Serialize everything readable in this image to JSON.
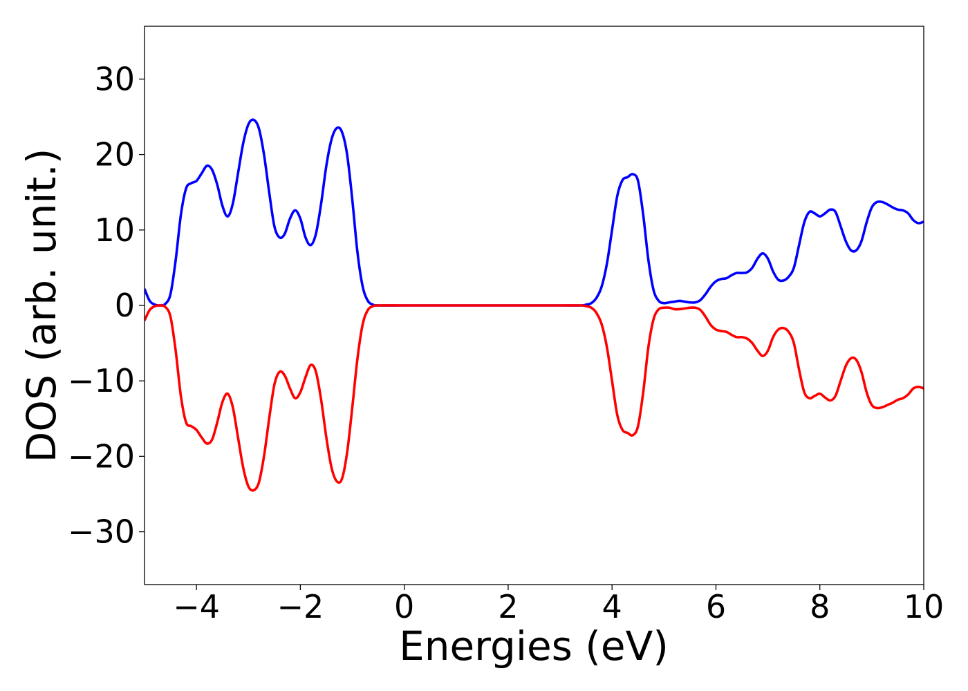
{
  "chart_data": {
    "type": "line",
    "title": "",
    "xlabel": "Energies (eV)",
    "ylabel": "DOS (arb. unit.)",
    "xlim": [
      -5,
      10
    ],
    "ylim": [
      -37,
      37
    ],
    "grid": false,
    "legend": "none",
    "xticks": [
      -4,
      -2,
      0,
      2,
      4,
      6,
      8,
      10
    ],
    "yticks": [
      30,
      20,
      10,
      0,
      -10,
      -20,
      -30
    ],
    "x_tick_labels": [
      "−4",
      "−2",
      "0",
      "2",
      "4",
      "6",
      "8",
      "10"
    ],
    "y_tick_labels": [
      "30",
      "20",
      "10",
      "0",
      "−10",
      "−20",
      "−30"
    ],
    "series": [
      {
        "color": "#0000ff",
        "points": [
          [
            -5.0,
            2.2
          ],
          [
            -4.9,
            0.6
          ],
          [
            -4.8,
            0.1
          ],
          [
            -4.7,
            0.0
          ],
          [
            -4.6,
            0.2
          ],
          [
            -4.5,
            1.5
          ],
          [
            -4.4,
            6.0
          ],
          [
            -4.3,
            12.0
          ],
          [
            -4.2,
            15.5
          ],
          [
            -4.1,
            16.2
          ],
          [
            -4.0,
            16.5
          ],
          [
            -3.9,
            17.5
          ],
          [
            -3.8,
            18.5
          ],
          [
            -3.7,
            18.0
          ],
          [
            -3.6,
            16.0
          ],
          [
            -3.5,
            13.2
          ],
          [
            -3.4,
            11.8
          ],
          [
            -3.3,
            13.5
          ],
          [
            -3.2,
            17.5
          ],
          [
            -3.1,
            21.5
          ],
          [
            -3.0,
            24.0
          ],
          [
            -2.9,
            24.6
          ],
          [
            -2.8,
            23.5
          ],
          [
            -2.7,
            20.0
          ],
          [
            -2.6,
            15.0
          ],
          [
            -2.5,
            10.5
          ],
          [
            -2.4,
            9.0
          ],
          [
            -2.3,
            9.5
          ],
          [
            -2.2,
            11.5
          ],
          [
            -2.1,
            12.6
          ],
          [
            -2.0,
            11.5
          ],
          [
            -1.9,
            9.0
          ],
          [
            -1.8,
            8.0
          ],
          [
            -1.7,
            9.5
          ],
          [
            -1.6,
            13.5
          ],
          [
            -1.5,
            18.5
          ],
          [
            -1.4,
            22.0
          ],
          [
            -1.3,
            23.5
          ],
          [
            -1.2,
            23.0
          ],
          [
            -1.1,
            20.0
          ],
          [
            -1.0,
            14.0
          ],
          [
            -0.9,
            7.0
          ],
          [
            -0.8,
            2.5
          ],
          [
            -0.7,
            0.6
          ],
          [
            -0.6,
            0.1
          ],
          [
            -0.5,
            0.0
          ],
          [
            0.0,
            0.0
          ],
          [
            1.0,
            0.0
          ],
          [
            2.0,
            0.0
          ],
          [
            3.0,
            0.0
          ],
          [
            3.4,
            0.0
          ],
          [
            3.5,
            0.1
          ],
          [
            3.6,
            0.3
          ],
          [
            3.7,
            1.0
          ],
          [
            3.8,
            2.5
          ],
          [
            3.9,
            5.5
          ],
          [
            4.0,
            10.0
          ],
          [
            4.1,
            14.5
          ],
          [
            4.2,
            16.6
          ],
          [
            4.3,
            17.0
          ],
          [
            4.4,
            17.4
          ],
          [
            4.5,
            16.5
          ],
          [
            4.6,
            12.0
          ],
          [
            4.7,
            6.0
          ],
          [
            4.8,
            2.0
          ],
          [
            4.9,
            0.6
          ],
          [
            5.0,
            0.3
          ],
          [
            5.1,
            0.4
          ],
          [
            5.2,
            0.5
          ],
          [
            5.3,
            0.6
          ],
          [
            5.4,
            0.5
          ],
          [
            5.5,
            0.4
          ],
          [
            5.6,
            0.4
          ],
          [
            5.7,
            0.7
          ],
          [
            5.8,
            1.5
          ],
          [
            5.9,
            2.5
          ],
          [
            6.0,
            3.2
          ],
          [
            6.1,
            3.5
          ],
          [
            6.2,
            3.6
          ],
          [
            6.3,
            4.0
          ],
          [
            6.4,
            4.3
          ],
          [
            6.5,
            4.3
          ],
          [
            6.6,
            4.4
          ],
          [
            6.7,
            5.0
          ],
          [
            6.8,
            6.2
          ],
          [
            6.9,
            6.9
          ],
          [
            7.0,
            6.2
          ],
          [
            7.1,
            4.5
          ],
          [
            7.2,
            3.4
          ],
          [
            7.3,
            3.3
          ],
          [
            7.4,
            3.8
          ],
          [
            7.5,
            5.0
          ],
          [
            7.6,
            8.0
          ],
          [
            7.7,
            11.0
          ],
          [
            7.8,
            12.4
          ],
          [
            7.9,
            12.2
          ],
          [
            8.0,
            11.8
          ],
          [
            8.1,
            12.2
          ],
          [
            8.2,
            12.7
          ],
          [
            8.3,
            12.4
          ],
          [
            8.4,
            10.5
          ],
          [
            8.5,
            8.5
          ],
          [
            8.6,
            7.3
          ],
          [
            8.7,
            7.3
          ],
          [
            8.8,
            8.5
          ],
          [
            8.9,
            11.0
          ],
          [
            9.0,
            13.0
          ],
          [
            9.1,
            13.7
          ],
          [
            9.2,
            13.7
          ],
          [
            9.3,
            13.4
          ],
          [
            9.4,
            13.0
          ],
          [
            9.5,
            12.7
          ],
          [
            9.6,
            12.6
          ],
          [
            9.7,
            12.2
          ],
          [
            9.8,
            11.3
          ],
          [
            9.9,
            10.9
          ],
          [
            10.0,
            11.1
          ]
        ]
      },
      {
        "color": "#ff0000",
        "points": [
          [
            -5.0,
            -2.0
          ],
          [
            -4.9,
            -0.6
          ],
          [
            -4.8,
            -0.1
          ],
          [
            -4.7,
            0.0
          ],
          [
            -4.6,
            -0.2
          ],
          [
            -4.5,
            -1.5
          ],
          [
            -4.4,
            -6.0
          ],
          [
            -4.3,
            -12.0
          ],
          [
            -4.2,
            -15.5
          ],
          [
            -4.1,
            -16.0
          ],
          [
            -4.0,
            -16.5
          ],
          [
            -3.9,
            -17.5
          ],
          [
            -3.8,
            -18.3
          ],
          [
            -3.7,
            -17.8
          ],
          [
            -3.6,
            -15.5
          ],
          [
            -3.5,
            -12.8
          ],
          [
            -3.4,
            -11.7
          ],
          [
            -3.3,
            -13.5
          ],
          [
            -3.2,
            -17.5
          ],
          [
            -3.1,
            -21.5
          ],
          [
            -3.0,
            -24.0
          ],
          [
            -2.9,
            -24.5
          ],
          [
            -2.8,
            -23.5
          ],
          [
            -2.7,
            -20.0
          ],
          [
            -2.6,
            -15.0
          ],
          [
            -2.5,
            -10.5
          ],
          [
            -2.4,
            -8.8
          ],
          [
            -2.3,
            -9.3
          ],
          [
            -2.2,
            -11.0
          ],
          [
            -2.1,
            -12.3
          ],
          [
            -2.0,
            -11.5
          ],
          [
            -1.9,
            -9.5
          ],
          [
            -1.8,
            -7.9
          ],
          [
            -1.7,
            -8.8
          ],
          [
            -1.6,
            -12.5
          ],
          [
            -1.5,
            -17.5
          ],
          [
            -1.4,
            -21.5
          ],
          [
            -1.3,
            -23.3
          ],
          [
            -1.2,
            -23.0
          ],
          [
            -1.1,
            -19.5
          ],
          [
            -1.0,
            -13.5
          ],
          [
            -0.9,
            -7.0
          ],
          [
            -0.8,
            -2.5
          ],
          [
            -0.7,
            -0.6
          ],
          [
            -0.6,
            -0.1
          ],
          [
            -0.5,
            0.0
          ],
          [
            0.0,
            0.0
          ],
          [
            1.0,
            0.0
          ],
          [
            2.0,
            0.0
          ],
          [
            3.0,
            0.0
          ],
          [
            3.4,
            0.0
          ],
          [
            3.5,
            -0.1
          ],
          [
            3.6,
            -0.3
          ],
          [
            3.7,
            -1.0
          ],
          [
            3.8,
            -2.5
          ],
          [
            3.9,
            -5.5
          ],
          [
            4.0,
            -10.0
          ],
          [
            4.1,
            -14.5
          ],
          [
            4.2,
            -16.5
          ],
          [
            4.3,
            -16.9
          ],
          [
            4.4,
            -17.2
          ],
          [
            4.5,
            -16.0
          ],
          [
            4.6,
            -11.5
          ],
          [
            4.7,
            -5.5
          ],
          [
            4.8,
            -1.8
          ],
          [
            4.9,
            -0.5
          ],
          [
            5.0,
            -0.3
          ],
          [
            5.1,
            -0.3
          ],
          [
            5.2,
            -0.5
          ],
          [
            5.3,
            -0.5
          ],
          [
            5.4,
            -0.4
          ],
          [
            5.5,
            -0.3
          ],
          [
            5.6,
            -0.3
          ],
          [
            5.7,
            -0.6
          ],
          [
            5.8,
            -1.5
          ],
          [
            5.9,
            -2.6
          ],
          [
            6.0,
            -3.2
          ],
          [
            6.1,
            -3.4
          ],
          [
            6.2,
            -3.5
          ],
          [
            6.3,
            -3.9
          ],
          [
            6.4,
            -4.2
          ],
          [
            6.5,
            -4.2
          ],
          [
            6.6,
            -4.4
          ],
          [
            6.7,
            -5.0
          ],
          [
            6.8,
            -6.0
          ],
          [
            6.9,
            -6.7
          ],
          [
            7.0,
            -6.0
          ],
          [
            7.1,
            -4.2
          ],
          [
            7.2,
            -3.2
          ],
          [
            7.3,
            -3.0
          ],
          [
            7.4,
            -3.5
          ],
          [
            7.5,
            -5.0
          ],
          [
            7.6,
            -8.5
          ],
          [
            7.7,
            -11.5
          ],
          [
            7.8,
            -12.3
          ],
          [
            7.9,
            -12.0
          ],
          [
            8.0,
            -11.7
          ],
          [
            8.1,
            -12.2
          ],
          [
            8.2,
            -12.6
          ],
          [
            8.3,
            -12.0
          ],
          [
            8.4,
            -10.0
          ],
          [
            8.5,
            -8.0
          ],
          [
            8.6,
            -7.0
          ],
          [
            8.7,
            -7.2
          ],
          [
            8.8,
            -8.8
          ],
          [
            8.9,
            -11.5
          ],
          [
            9.0,
            -13.2
          ],
          [
            9.1,
            -13.6
          ],
          [
            9.2,
            -13.5
          ],
          [
            9.3,
            -13.2
          ],
          [
            9.4,
            -12.9
          ],
          [
            9.5,
            -12.5
          ],
          [
            9.6,
            -12.3
          ],
          [
            9.7,
            -11.8
          ],
          [
            9.8,
            -11.0
          ],
          [
            9.9,
            -10.8
          ],
          [
            10.0,
            -11.0
          ]
        ]
      }
    ]
  }
}
